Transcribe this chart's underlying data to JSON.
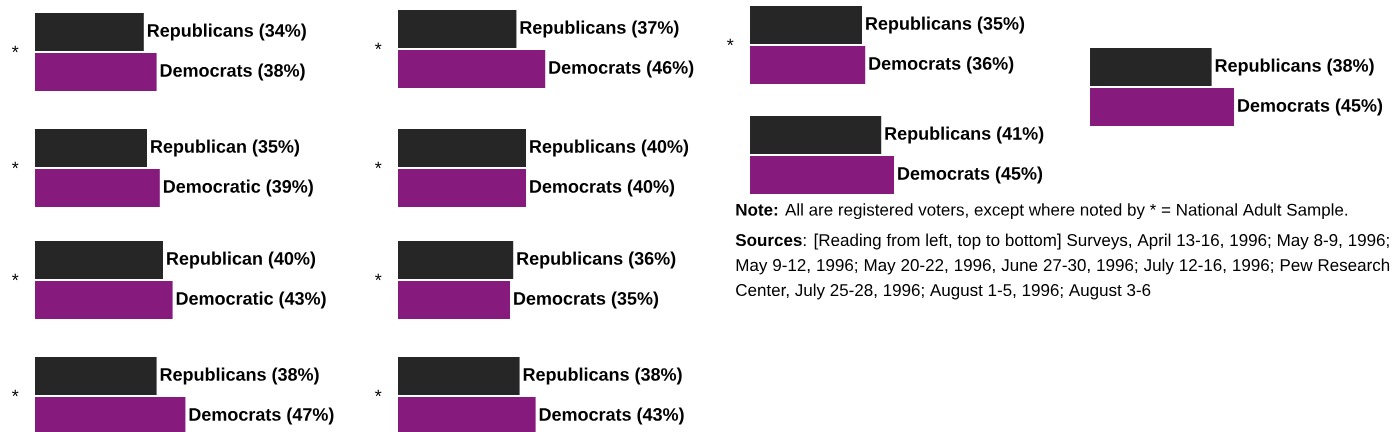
{
  "chart_data": [
    {
      "type": "bar",
      "orientation": "horizontal",
      "categories": [
        null,
        null
      ],
      "values": [
        34,
        38
      ],
      "colors": [
        "#262626",
        "#861a7d"
      ],
      "value_labels": [
        "Republicans (34%)",
        "Democrats (38%)"
      ],
      "annotations": [
        "*"
      ]
    },
    {
      "type": "bar",
      "orientation": "horizontal",
      "categories": [
        null,
        null
      ],
      "values": [
        35,
        39
      ],
      "colors": [
        "#262626",
        "#861a7d"
      ],
      "value_labels": [
        "Republican (35%)",
        "Democratic (39%)"
      ],
      "annotations": [
        "*"
      ]
    },
    {
      "type": "bar",
      "orientation": "horizontal",
      "categories": [
        null,
        null
      ],
      "values": [
        40,
        43
      ],
      "colors": [
        "#262626",
        "#861a7d"
      ],
      "value_labels": [
        "Republican (40%)",
        "Democratic (43%)"
      ],
      "annotations": [
        "*"
      ]
    },
    {
      "type": "bar",
      "orientation": "horizontal",
      "categories": [
        null,
        null
      ],
      "values": [
        38,
        47
      ],
      "colors": [
        "#262626",
        "#861a7d"
      ],
      "value_labels": [
        "Republicans (38%)",
        "Democrats (47%)"
      ],
      "annotations": [
        "*"
      ]
    },
    {
      "type": "bar",
      "orientation": "horizontal",
      "categories": [
        null,
        null
      ],
      "values": [
        37,
        46
      ],
      "colors": [
        "#262626",
        "#861a7d"
      ],
      "value_labels": [
        "Republicans (37%)",
        "Democrats (46%)"
      ],
      "annotations": [
        "*"
      ]
    },
    {
      "type": "bar",
      "orientation": "horizontal",
      "categories": [
        null,
        null
      ],
      "values": [
        40,
        40
      ],
      "colors": [
        "#262626",
        "#861a7d"
      ],
      "value_labels": [
        "Republicans (40%)",
        "Democrats (40%)"
      ],
      "annotations": [
        "*"
      ]
    },
    {
      "type": "bar",
      "orientation": "horizontal",
      "categories": [
        null,
        null
      ],
      "values": [
        36,
        35
      ],
      "colors": [
        "#262626",
        "#861a7d"
      ],
      "value_labels": [
        "Republicans (36%)",
        "Democrats (35%)"
      ],
      "annotations": [
        "*"
      ]
    },
    {
      "type": "bar",
      "orientation": "horizontal",
      "categories": [
        null,
        null
      ],
      "values": [
        38,
        43
      ],
      "colors": [
        "#262626",
        "#861a7d"
      ],
      "value_labels": [
        "Republicans (38%)",
        "Democrats (43%)"
      ],
      "annotations": [
        "*"
      ]
    },
    {
      "type": "bar",
      "orientation": "horizontal",
      "categories": [
        null,
        null
      ],
      "values": [
        35,
        36
      ],
      "colors": [
        "#262626",
        "#861a7d"
      ],
      "value_labels": [
        "Republicans (35%)",
        "Democrats (36%)"
      ],
      "annotations": [
        "*"
      ]
    },
    {
      "type": "bar",
      "orientation": "horizontal",
      "categories": [
        null,
        null
      ],
      "values": [
        38,
        45
      ],
      "colors": [
        "#262626",
        "#861a7d"
      ],
      "value_labels": [
        "Republicans (38%)",
        "Democrats (45%)"
      ]
    },
    {
      "type": "bar",
      "orientation": "horizontal",
      "categories": [
        null,
        null
      ],
      "values": [
        41,
        45
      ],
      "colors": [
        "#262626",
        "#861a7d"
      ],
      "value_labels": [
        "Republicans (41%)",
        "Democrats (45%)"
      ]
    },
    {
      "type": "other",
      "annotations": [
        "**Note:** All are registered voters, except where noted by * = National Adult Sample.",
        "**Sources**: [Reading from left, top to bottom] Surveys, April 13-16, 1996; May 8-9, 1996; May 9-12, 1996; May 20-22, 1996, June 27-30, 1996; July 12-16, 1996; Pew Research Center, July 25-28, 1996; August 1-5, 1996; August 3-6"
      ]
    }
  ]
}
